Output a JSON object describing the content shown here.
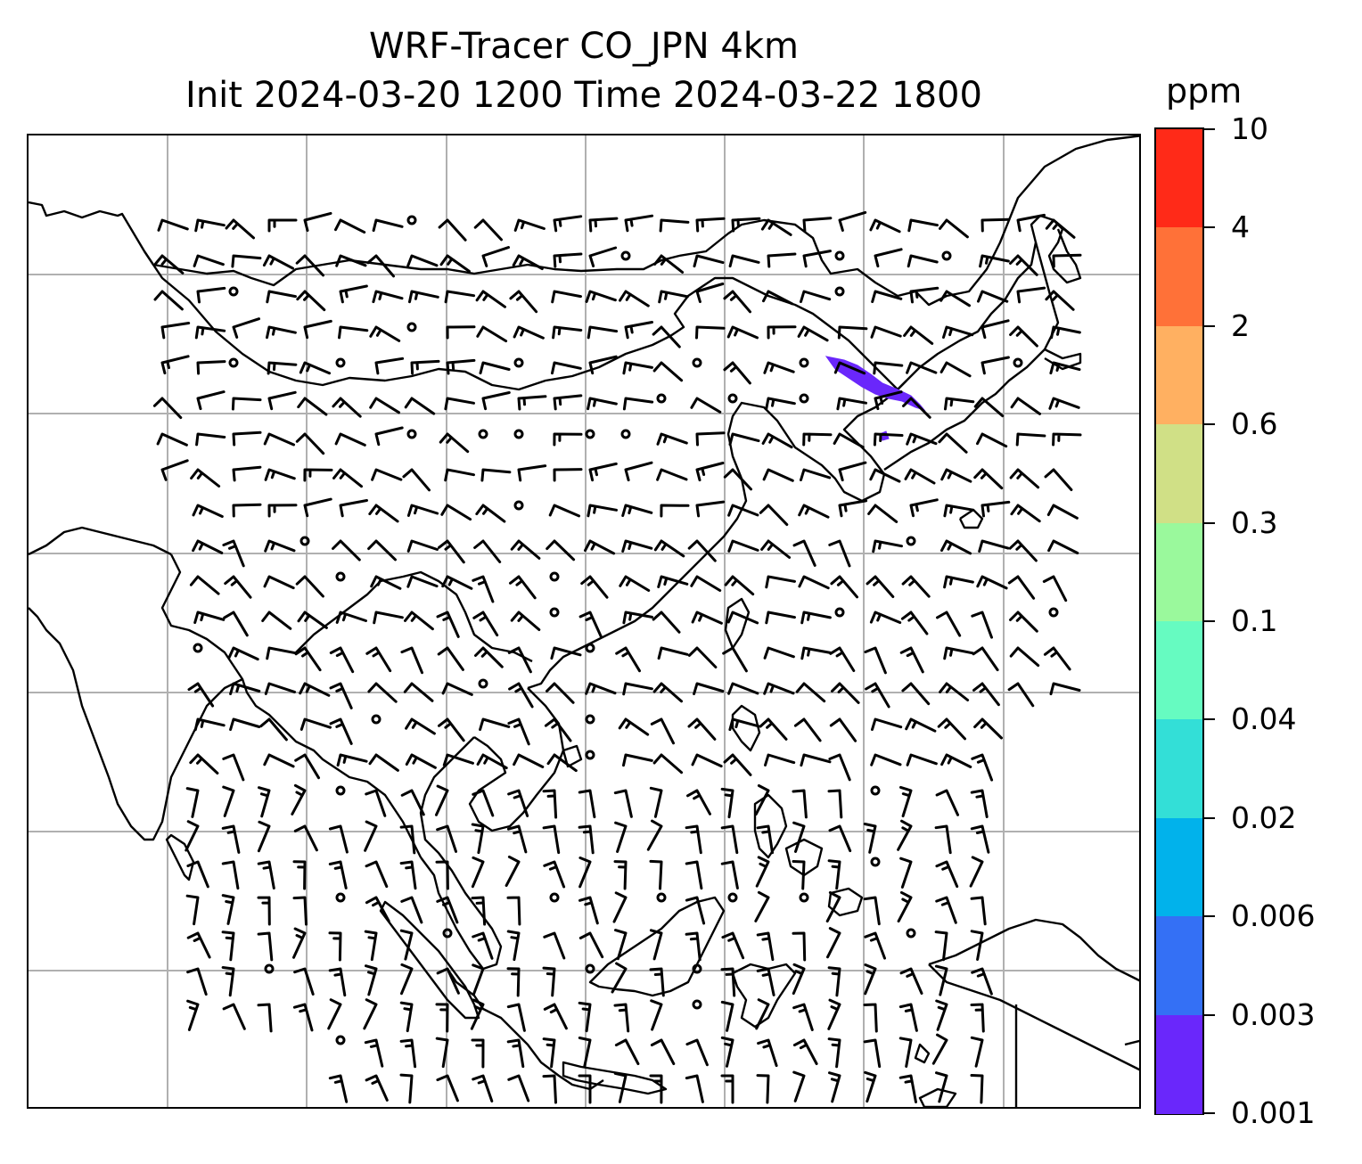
{
  "title": {
    "line1": "WRF-Tracer CO_JPN 4km",
    "line2": "Init 2024-03-20 1200 Time 2024-03-22 1800"
  },
  "colorbar": {
    "unit": "ppm",
    "levels": [
      "10",
      "4",
      "2",
      "0.6",
      "0.3",
      "0.1",
      "0.04",
      "0.02",
      "0.006",
      "0.003",
      "0.001"
    ],
    "colors": [
      "#ff2a18",
      "#ff7138",
      "#ffb061",
      "#d0e086",
      "#9af99c",
      "#66fbc1",
      "#33dfd7",
      "#01b2eb",
      "#3470f5",
      "#6a27fb"
    ]
  },
  "map": {
    "gridlines": true,
    "coastline_color": "#000000",
    "tracer_plume_color": "#6a27fb",
    "wind_barbs_color": "#000000"
  }
}
